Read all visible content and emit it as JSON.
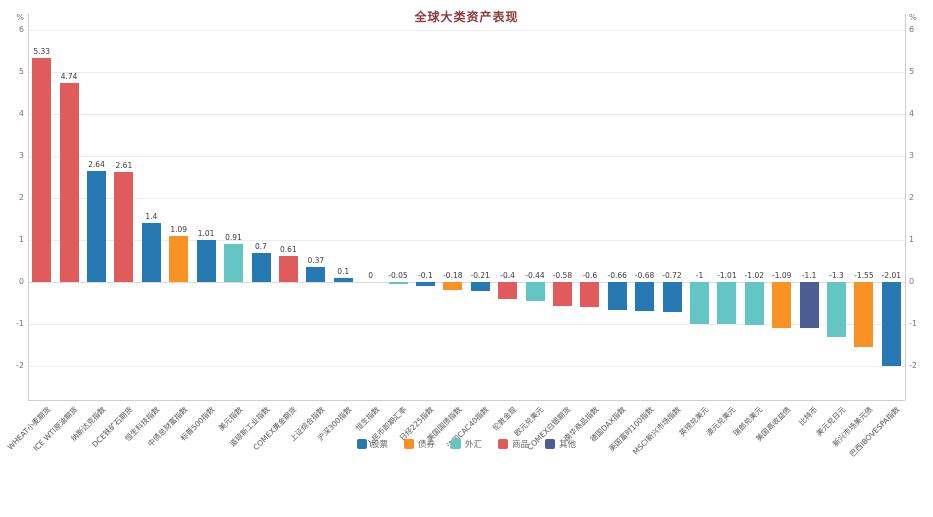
{
  "title": "全球大类资产表现",
  "y_axis": {
    "unit": "%",
    "ticks": [
      6,
      5,
      4,
      3,
      2,
      1,
      0,
      -1,
      -2
    ]
  },
  "legend": {
    "items": [
      {
        "label": "股票",
        "color": "#2679b2"
      },
      {
        "label": "债券",
        "color": "#f89225"
      },
      {
        "label": "外汇",
        "color": "#63c5c4"
      },
      {
        "label": "商品",
        "color": "#e05c5c"
      },
      {
        "label": "其他",
        "color": "#4e5c96"
      }
    ]
  },
  "chart_data": {
    "type": "bar",
    "title": "全球大类资产表现",
    "xlabel": "",
    "ylabel": "%",
    "ylim": [
      -2.8,
      6.2
    ],
    "grid": true,
    "legend_position": "bottom",
    "categories": [
      "WHEAT小麦期货",
      "ICE WTI原油期货",
      "纳斯达克指数",
      "DCE铁矿石期货",
      "恒生科技指数",
      "中债总财富指数",
      "标普500指数",
      "美元指数",
      "道琼斯工业指数",
      "COMEX黄金期货",
      "上证综合指数",
      "沪深300指数",
      "恒生指数",
      "人民币即期汇率",
      "日经225指数",
      "美国国债指数",
      "法国CAC40指数",
      "伦敦金现",
      "欧元兑美元",
      "COMEX白银期货",
      "南华商品指数",
      "德国DAX指数",
      "英国富时100指数",
      "MSCI新兴市场指数",
      "英镑兑美元",
      "澳元兑美元",
      "瑞郎兑美元",
      "美国高收益债",
      "比特币",
      "美元兑日元",
      "新兴市场美元债",
      "巴西IBOVESPA指数"
    ],
    "values": [
      5.33,
      4.74,
      2.64,
      2.61,
      1.4,
      1.09,
      1.01,
      0.91,
      0.7,
      0.61,
      0.37,
      0.1,
      0,
      -0.05,
      -0.1,
      -0.18,
      -0.21,
      -0.4,
      -0.44,
      -0.58,
      -0.6,
      -0.66,
      -0.68,
      -0.72,
      -1,
      -1.01,
      -1.02,
      -1.09,
      -1.1,
      -1.3,
      -1.55,
      -2.01
    ],
    "value_labels": [
      "5.33",
      "4.74",
      "2.64",
      "2.61",
      "1.4",
      "1.09",
      "1.01",
      "0.91",
      "0.7",
      "0.61",
      "0.37",
      "0.1",
      "0",
      "-0.05",
      "-0.1",
      "-0.18",
      "-0.21",
      "-0.4",
      "-0.44",
      "-0.58",
      "-0.6",
      "-0.66",
      "-0.68",
      "-0.72",
      "-1",
      "-1.01",
      "-1.02",
      "-1.09",
      "-1.1",
      "-1.3",
      "-1.55",
      "-2.01"
    ],
    "groups": [
      "商品",
      "商品",
      "股票",
      "商品",
      "股票",
      "债券",
      "股票",
      "外汇",
      "股票",
      "商品",
      "股票",
      "股票",
      "股票",
      "外汇",
      "股票",
      "债券",
      "股票",
      "商品",
      "外汇",
      "商品",
      "商品",
      "股票",
      "股票",
      "股票",
      "外汇",
      "外汇",
      "外汇",
      "债券",
      "其他",
      "外汇",
      "债券",
      "股票"
    ],
    "group_colors": {
      "股票": "#2679b2",
      "债券": "#f89225",
      "外汇": "#63c5c4",
      "商品": "#e05c5c",
      "其他": "#4e5c96"
    }
  }
}
